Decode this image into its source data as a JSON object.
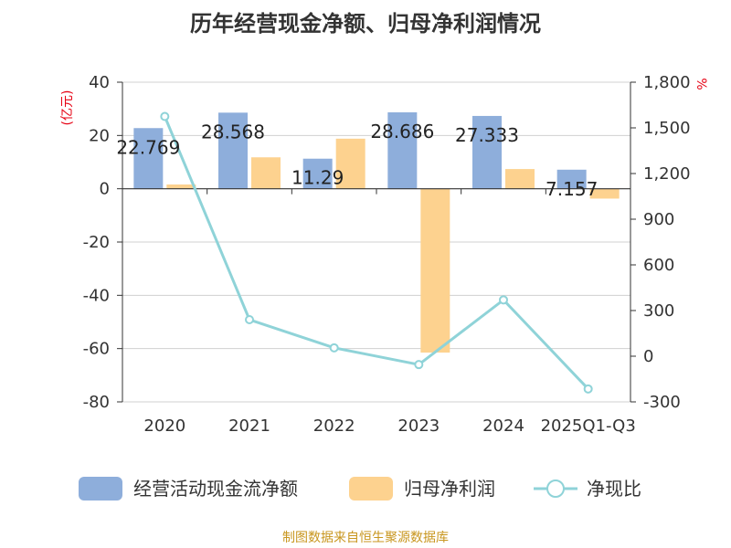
{
  "chart_data": {
    "type": "bar",
    "title": "历年经营现金净额、归母净利润情况",
    "categories": [
      "2020",
      "2021",
      "2022",
      "2023",
      "2024",
      "2025Q1-Q3"
    ],
    "series": [
      {
        "name": "经营活动现金流净额",
        "kind": "bar",
        "axis": "left",
        "color": "#8eaedb",
        "values": [
          22.769,
          28.568,
          11.29,
          28.686,
          27.333,
          7.157
        ],
        "labels": [
          "22.769",
          "28.568",
          "11.29",
          "28.686",
          "27.333",
          "7.157"
        ]
      },
      {
        "name": "归母净利润",
        "kind": "bar",
        "axis": "left",
        "color": "#fdd28f",
        "values": [
          1.6,
          11.8,
          18.8,
          -61.5,
          7.4,
          -3.7
        ]
      },
      {
        "name": "净现比",
        "kind": "line",
        "axis": "right",
        "color": "#8fd3d8",
        "values": [
          1575,
          240,
          55,
          -55,
          370,
          -215
        ]
      }
    ],
    "left_axis": {
      "unit": "(亿元)",
      "min": -80,
      "max": 40,
      "ticks": [
        40,
        20,
        0,
        -20,
        -40,
        -60,
        -80
      ],
      "tick_labels": [
        "40",
        "20",
        "0",
        "-20",
        "-40",
        "-60",
        "-80"
      ]
    },
    "right_axis": {
      "unit": "%",
      "min": -300,
      "max": 1800,
      "ticks": [
        1800,
        1500,
        1200,
        900,
        600,
        300,
        0,
        -300
      ],
      "tick_labels": [
        "1,800",
        "1,500",
        "1,200",
        "900",
        "600",
        "300",
        "0",
        "-300"
      ]
    },
    "grid": true,
    "legend_position": "bottom"
  },
  "source_note": "制图数据来自恒生聚源数据库"
}
